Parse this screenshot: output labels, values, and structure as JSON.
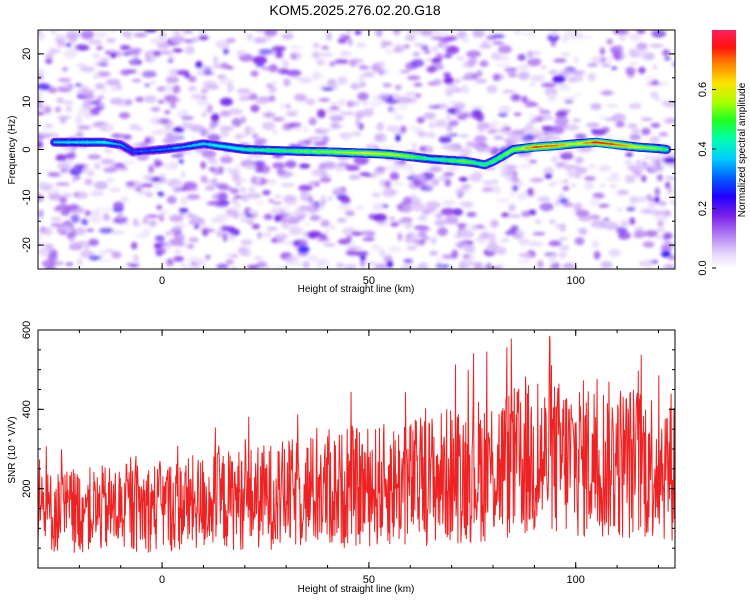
{
  "title": "KOM5.2025.276.02.20.G18",
  "chart_data": [
    {
      "type": "heatmap",
      "name": "spectrogram",
      "xlabel": "Height of straight line (km)",
      "ylabel": "Frequency (Hz)",
      "xlim": [
        -30,
        124
      ],
      "ylim": [
        -25,
        25
      ],
      "xticks": [
        0,
        50,
        100
      ],
      "xtick_labels": [
        "0",
        "50",
        "100"
      ],
      "yticks": [
        -20,
        -10,
        0,
        10,
        20
      ],
      "ytick_labels": [
        "-20",
        "-10",
        "0",
        "10",
        "20"
      ],
      "colorbar": {
        "label": "Normalized spectral amplitude",
        "range": [
          0.0,
          0.8
        ],
        "ticks": [
          0.0,
          0.2,
          0.4,
          0.6
        ],
        "tick_labels": [
          "0.0",
          "0.2",
          "0.4",
          "0.6"
        ]
      },
      "ridge": {
        "x": [
          -26,
          -20,
          -14,
          -10,
          -7,
          0,
          5,
          10,
          20,
          30,
          40,
          50,
          55,
          60,
          65,
          70,
          73,
          75,
          78,
          80,
          85,
          90,
          95,
          100,
          105,
          110,
          115,
          120,
          122
        ],
        "y": [
          1.5,
          1.5,
          1.5,
          1.0,
          -0.5,
          0.0,
          0.5,
          1.2,
          0.0,
          -0.3,
          -0.5,
          -0.8,
          -1.0,
          -1.5,
          -2.0,
          -2.3,
          -2.5,
          -2.7,
          -3.2,
          -2.5,
          0.0,
          0.5,
          0.8,
          1.2,
          1.5,
          1.0,
          0.5,
          0.2,
          0.0
        ],
        "amplitude": [
          0.38,
          0.4,
          0.42,
          0.35,
          0.3,
          0.33,
          0.36,
          0.4,
          0.45,
          0.5,
          0.55,
          0.62,
          0.6,
          0.55,
          0.45,
          0.5,
          0.55,
          0.5,
          0.48,
          0.5,
          0.55,
          0.72,
          0.7,
          0.6,
          0.75,
          0.72,
          0.6,
          0.55,
          0.5
        ]
      }
    },
    {
      "type": "line",
      "name": "snr",
      "xlabel": "Height of straight line (km)",
      "ylabel": "SNR (10 * V/V)",
      "xlim": [
        -30,
        124
      ],
      "ylim": [
        0,
        600
      ],
      "xticks": [
        0,
        50,
        100
      ],
      "xtick_labels": [
        "0",
        "50",
        "100"
      ],
      "yticks": [
        200,
        400,
        600
      ],
      "ytick_labels": [
        "200",
        "400",
        "600"
      ],
      "series": [
        {
          "name": "SNR",
          "color": "#ee2222",
          "x": [
            -30,
            -20,
            -10,
            0,
            10,
            20,
            30,
            40,
            50,
            60,
            70,
            80,
            90,
            100,
            110,
            120,
            124
          ],
          "values": [
            140,
            145,
            150,
            155,
            165,
            175,
            185,
            195,
            205,
            215,
            235,
            255,
            270,
            275,
            270,
            262,
            260
          ]
        }
      ]
    }
  ]
}
